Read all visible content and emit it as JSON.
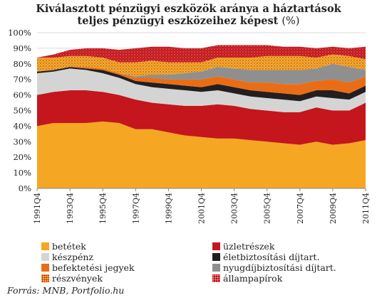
{
  "title_line1": "Kiválasztott pénzügyi eszközök aránya a háztartások",
  "title_line2_bold": "teljes pénzügyi eszközeihez képest",
  "title_line2_unit": "(%)",
  "source": "Forrás: MNB, Portfolio.hu",
  "colors": {
    "betetek": "#f5a623",
    "uzletreszek": "#c4161c",
    "keszpenz": "#d4d4d4",
    "eletbiztositasi": "#231f20",
    "befektetesi": "#ea6d16",
    "nyugdij": "#8f8f8f",
    "reszvenyek": "#efb02b",
    "allampapirok": "#c4161c"
  },
  "legend": [
    {
      "key": "betetek",
      "label": "betétek",
      "pattern": "solid"
    },
    {
      "key": "uzletreszek",
      "label": "üzletrészek",
      "pattern": "solid"
    },
    {
      "key": "keszpenz",
      "label": "készpénz",
      "pattern": "solid"
    },
    {
      "key": "eletbiztositasi",
      "label": "életbiztosítási díjtart.",
      "pattern": "solid"
    },
    {
      "key": "befektetesi",
      "label": "befektetési jegyek",
      "pattern": "solid"
    },
    {
      "key": "nyugdij",
      "label": "nyugdíjbiztosítási díjtart.",
      "pattern": "solid"
    },
    {
      "key": "reszvenyek",
      "label": "részvények",
      "pattern": "dots-red-on-orange"
    },
    {
      "key": "allampapirok",
      "label": "állampapírok",
      "pattern": "dots-white-on-red"
    }
  ],
  "chart_data": {
    "type": "area",
    "stacked": true,
    "ylim": [
      0,
      100
    ],
    "yticks": [
      "0%",
      "10%",
      "20%",
      "30%",
      "40%",
      "50%",
      "60%",
      "70%",
      "80%",
      "90%",
      "100%"
    ],
    "xticks": [
      "1991Q4",
      "1993Q4",
      "1995Q4",
      "1997Q4",
      "1999Q4",
      "2001Q4",
      "2003Q4",
      "2005Q4",
      "2007Q4",
      "2009Q4",
      "2011Q4"
    ],
    "x": [
      "1991Q4",
      "1992Q4",
      "1993Q4",
      "1994Q4",
      "1995Q4",
      "1996Q4",
      "1997Q4",
      "1998Q4",
      "1999Q4",
      "2000Q4",
      "2001Q4",
      "2002Q4",
      "2003Q4",
      "2004Q4",
      "2005Q4",
      "2006Q4",
      "2007Q4",
      "2008Q4",
      "2009Q4",
      "2010Q4",
      "2011Q4"
    ],
    "series": [
      {
        "key": "betetek",
        "name": "betétek",
        "values": [
          40,
          42,
          42,
          42,
          43,
          42,
          38,
          38,
          36,
          34,
          33,
          32,
          32,
          31,
          30,
          29,
          28,
          30,
          28,
          29,
          31
        ]
      },
      {
        "key": "uzletreszek",
        "name": "üzletrészek",
        "values": [
          20,
          20,
          21,
          21,
          19,
          18,
          19,
          17,
          18,
          19,
          20,
          22,
          21,
          20,
          20,
          20,
          21,
          22,
          22,
          21,
          24
        ]
      },
      {
        "key": "keszpenz",
        "name": "készpénz",
        "values": [
          14,
          13,
          14,
          13,
          12,
          11,
          10,
          10,
          10,
          10,
          9,
          9,
          8,
          8,
          8,
          8,
          7,
          7,
          8,
          7,
          7
        ]
      },
      {
        "key": "eletbiztositasi",
        "name": "életbiztosítási díjtart.",
        "values": [
          1,
          1,
          1,
          1,
          2,
          2,
          2,
          3,
          3,
          3,
          3,
          4,
          4,
          4,
          4,
          4,
          4,
          4,
          5,
          4,
          4
        ]
      },
      {
        "key": "befektetesi",
        "name": "befektetési jegyek",
        "values": [
          0,
          0,
          0,
          1,
          1,
          1,
          2,
          3,
          3,
          4,
          5,
          5,
          5,
          5,
          6,
          6,
          7,
          6,
          7,
          7,
          6
        ]
      },
      {
        "key": "nyugdij",
        "name": "nyugdíjbiztosítási díjtart.",
        "values": [
          0,
          0,
          0,
          0,
          0,
          0,
          1,
          2,
          3,
          4,
          5,
          6,
          7,
          8,
          8,
          9,
          9,
          8,
          10,
          10,
          4
        ]
      },
      {
        "key": "reszvenyek",
        "name": "részvények",
        "values": [
          9,
          8,
          7,
          7,
          7,
          7,
          9,
          9,
          8,
          7,
          6,
          6,
          7,
          8,
          9,
          9,
          9,
          7,
          6,
          7,
          7
        ]
      },
      {
        "key": "allampapirok",
        "name": "állampapírok",
        "values": [
          0,
          2,
          4,
          5,
          6,
          8,
          9,
          9,
          10,
          9,
          9,
          8,
          8,
          8,
          7,
          6,
          6,
          6,
          5,
          5,
          8
        ]
      }
    ]
  }
}
